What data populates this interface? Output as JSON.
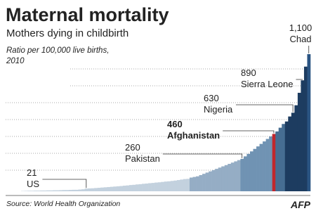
{
  "chart_data": {
    "type": "bar",
    "title": "Maternal mortality",
    "subtitle": "Mothers dying in childbirth",
    "ylabel": [
      "Ratio per 100,000 live births,",
      "2010"
    ],
    "source": "Source: World Health Organization",
    "credit": "AFP",
    "ylim": [
      0,
      1100
    ],
    "categories": [
      null,
      null,
      null,
      null,
      null,
      null,
      null,
      null,
      null,
      null,
      null,
      null,
      null,
      null,
      null,
      null,
      null,
      null,
      null,
      null,
      "US",
      null,
      null,
      null,
      null,
      null,
      null,
      null,
      null,
      null,
      null,
      null,
      null,
      null,
      null,
      null,
      null,
      null,
      null,
      null,
      null,
      null,
      null,
      null,
      null,
      null,
      null,
      null,
      null,
      null,
      null,
      null,
      null,
      null,
      null,
      null,
      null,
      null,
      null,
      null,
      null,
      null,
      null,
      null,
      null,
      null,
      null,
      null,
      null,
      "Pakistan",
      null,
      null,
      null,
      null,
      null,
      null,
      null,
      null,
      null,
      "Afghanistan",
      null,
      null,
      null,
      null,
      null,
      "Nigeria",
      null,
      null,
      "Sierra Leone",
      null,
      "Chad"
    ],
    "values": [
      2,
      3,
      4,
      4,
      5,
      5,
      6,
      6,
      7,
      7,
      8,
      8,
      9,
      10,
      10,
      11,
      12,
      12,
      14,
      16,
      21,
      23,
      24,
      26,
      28,
      30,
      32,
      34,
      36,
      38,
      40,
      42,
      45,
      47,
      50,
      52,
      55,
      57,
      60,
      62,
      65,
      67,
      70,
      72,
      75,
      78,
      80,
      83,
      86,
      90,
      94,
      98,
      100,
      110,
      115,
      120,
      130,
      140,
      150,
      160,
      170,
      180,
      190,
      200,
      210,
      220,
      230,
      240,
      250,
      260,
      280,
      300,
      320,
      340,
      360,
      380,
      400,
      420,
      440,
      460,
      480,
      510,
      540,
      560,
      600,
      630,
      690,
      790,
      890,
      1000,
      1100
    ],
    "value_labels": [
      null,
      null,
      null,
      null,
      null,
      null,
      null,
      null,
      null,
      null,
      null,
      null,
      null,
      null,
      null,
      null,
      null,
      null,
      null,
      null,
      "21",
      null,
      null,
      null,
      null,
      null,
      null,
      null,
      null,
      null,
      null,
      null,
      null,
      null,
      null,
      null,
      null,
      null,
      null,
      null,
      null,
      null,
      null,
      null,
      null,
      null,
      null,
      null,
      null,
      null,
      null,
      null,
      null,
      null,
      null,
      null,
      null,
      null,
      null,
      null,
      null,
      null,
      null,
      null,
      null,
      null,
      null,
      null,
      null,
      "260",
      null,
      null,
      null,
      null,
      null,
      null,
      null,
      null,
      null,
      "460",
      null,
      null,
      null,
      null,
      null,
      "630",
      null,
      null,
      "890",
      null,
      "1,100"
    ],
    "colors": [
      "#c3d1de",
      "#c3d1de",
      "#c3d1de",
      "#c3d1de",
      "#c3d1de",
      "#c3d1de",
      "#c3d1de",
      "#c3d1de",
      "#c3d1de",
      "#c3d1de",
      "#c3d1de",
      "#c3d1de",
      "#c3d1de",
      "#c3d1de",
      "#c3d1de",
      "#c3d1de",
      "#c3d1de",
      "#c3d1de",
      "#c3d1de",
      "#c3d1de",
      "#c3d1de",
      "#c3d1de",
      "#c3d1de",
      "#c3d1de",
      "#c3d1de",
      "#c3d1de",
      "#c3d1de",
      "#c3d1de",
      "#c3d1de",
      "#c3d1de",
      "#c3d1de",
      "#c3d1de",
      "#c3d1de",
      "#c3d1de",
      "#c3d1de",
      "#c3d1de",
      "#c3d1de",
      "#c3d1de",
      "#c3d1de",
      "#c3d1de",
      "#c3d1de",
      "#c3d1de",
      "#c3d1de",
      "#c3d1de",
      "#c3d1de",
      "#c3d1de",
      "#c3d1de",
      "#c3d1de",
      "#c3d1de",
      "#c3d1de",
      "#c3d1de",
      "#c3d1de",
      "#c3d1de",
      "#95adc5",
      "#95adc5",
      "#95adc5",
      "#95adc5",
      "#95adc5",
      "#95adc5",
      "#95adc5",
      "#95adc5",
      "#95adc5",
      "#95adc5",
      "#95adc5",
      "#95adc5",
      "#95adc5",
      "#95adc5",
      "#95adc5",
      "#95adc5",
      "#7093b3",
      "#7093b3",
      "#7093b3",
      "#7093b3",
      "#7093b3",
      "#7093b3",
      "#7093b3",
      "#7093b3",
      "#7093b3",
      "#7093b3",
      "#c1272d",
      "#466d92",
      "#466d92",
      "#466d92",
      "#1d3c60",
      "#1d3c60",
      "#1d3c60",
      "#1d3c60",
      "#1d3c60",
      "#1d3c60",
      "#1d3c60",
      "#2a5482"
    ]
  }
}
